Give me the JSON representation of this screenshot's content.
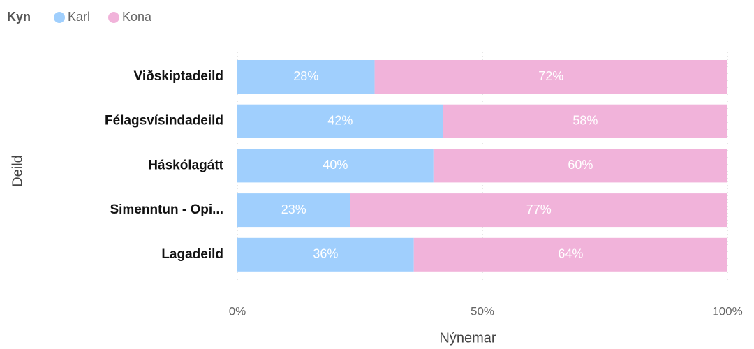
{
  "chart_data": {
    "type": "stacked_bar_horizontal",
    "legend_title": "Kyn",
    "legend": "top-left",
    "categories": [
      "Viðskiptadeild",
      "Félagsvísindadeild",
      "Háskólagátt",
      "Simenntun - Opi...",
      "Lagadeild"
    ],
    "series": [
      {
        "name": "Karl",
        "color": "#a0cffd",
        "values": [
          28,
          42,
          40,
          23,
          36
        ],
        "value_labels": [
          "28%",
          "42%",
          "40%",
          "23%",
          "36%"
        ]
      },
      {
        "name": "Kona",
        "color": "#f1b3da",
        "values": [
          72,
          58,
          60,
          77,
          64
        ],
        "value_labels": [
          "72%",
          "58%",
          "60%",
          "77%",
          "64%"
        ]
      }
    ],
    "xlim": [
      0,
      100
    ],
    "xticks": [
      {
        "value": 0,
        "label": "0%"
      },
      {
        "value": 50,
        "label": "50%"
      },
      {
        "value": 100,
        "label": "100%"
      }
    ],
    "grid": true,
    "xlabel": "Nýnemar",
    "ylabel": "Deild"
  }
}
